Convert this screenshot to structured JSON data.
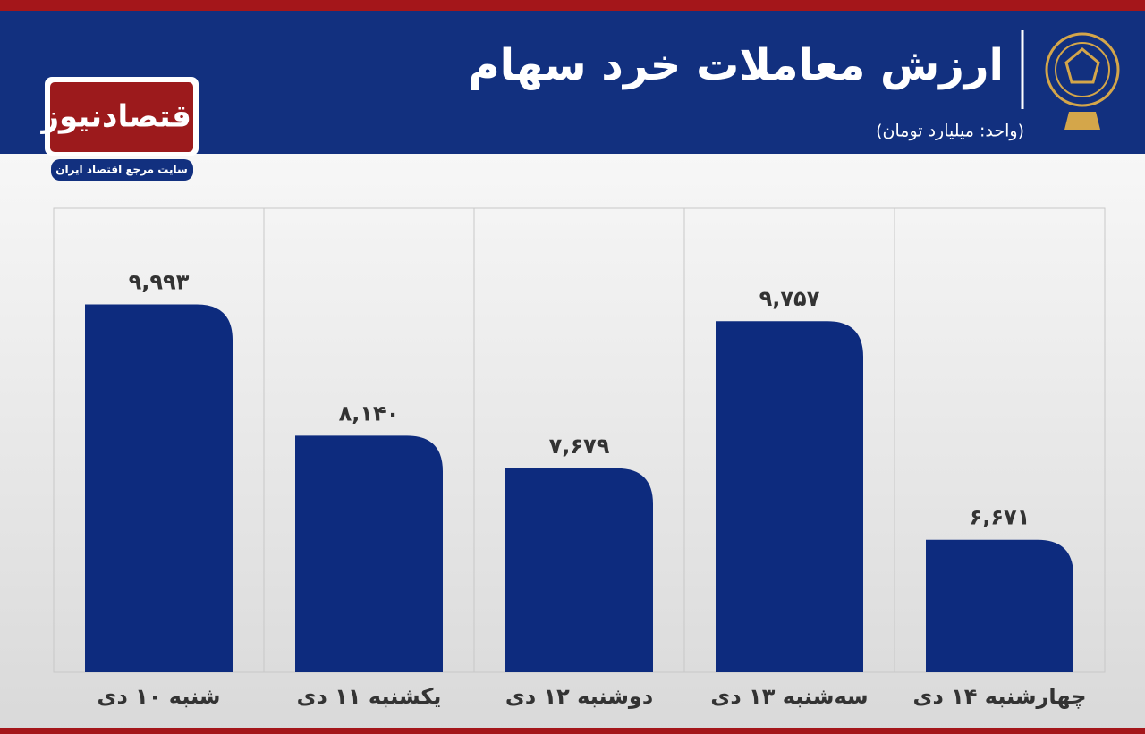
{
  "header": {
    "brand": "اقتصادنیوز",
    "tagline": "سایت مرجع اقتصاد ایران"
  },
  "chart_data": {
    "type": "bar",
    "title": "ارزش معاملات خرد سهام",
    "subtitle": "(واحد: میلیارد تومان)",
    "categories": [
      "شنبه ۱۰ دی",
      "یکشنبه ۱۱ دی",
      "دوشنبه ۱۲ دی",
      "سه‌شنبه ۱۳ دی",
      "چهارشنبه ۱۴ دی"
    ],
    "values": [
      9993,
      8140,
      7679,
      9757,
      6671
    ],
    "value_labels": [
      "۹,۹۹۳",
      "۸,۱۴۰",
      "۷,۶۷۹",
      "۹,۷۵۷",
      "۶,۶۷۱"
    ],
    "color": "#0d2b7e",
    "ylim": [
      4800,
      11350
    ]
  }
}
